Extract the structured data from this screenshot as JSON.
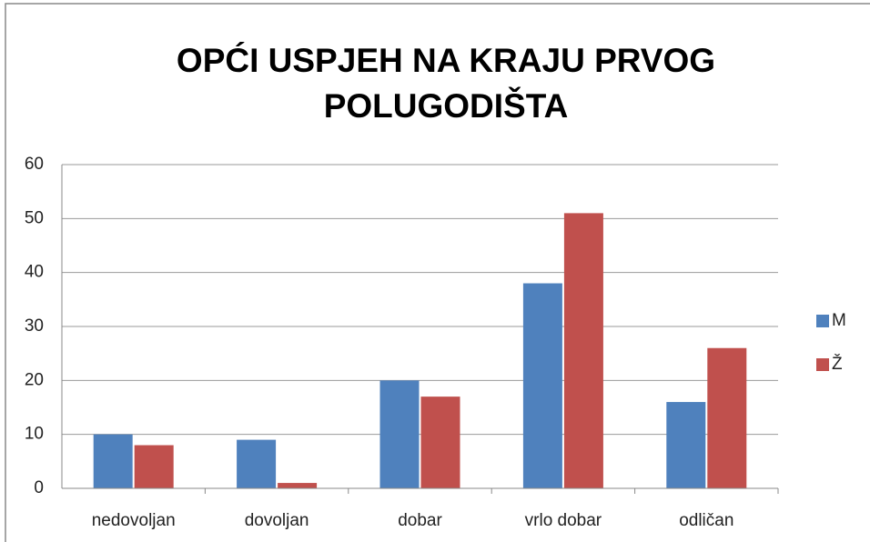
{
  "chart_data": {
    "type": "bar",
    "title": "OPĆI USPJEH NA KRAJU PRVOG POLUGODIŠTA",
    "categories": [
      "nedovoljan",
      "dovoljan",
      "dobar",
      "vrlo dobar",
      "odličan"
    ],
    "series": [
      {
        "name": "M",
        "color": "#4f81bd",
        "values": [
          10,
          9,
          20,
          38,
          16
        ]
      },
      {
        "name": "Ž",
        "color": "#c0504d",
        "values": [
          8,
          1,
          17,
          51,
          26
        ]
      }
    ],
    "ylim": [
      0,
      60
    ],
    "yticks": [
      0,
      10,
      20,
      30,
      40,
      50,
      60
    ],
    "grid": true,
    "legend": "right"
  }
}
